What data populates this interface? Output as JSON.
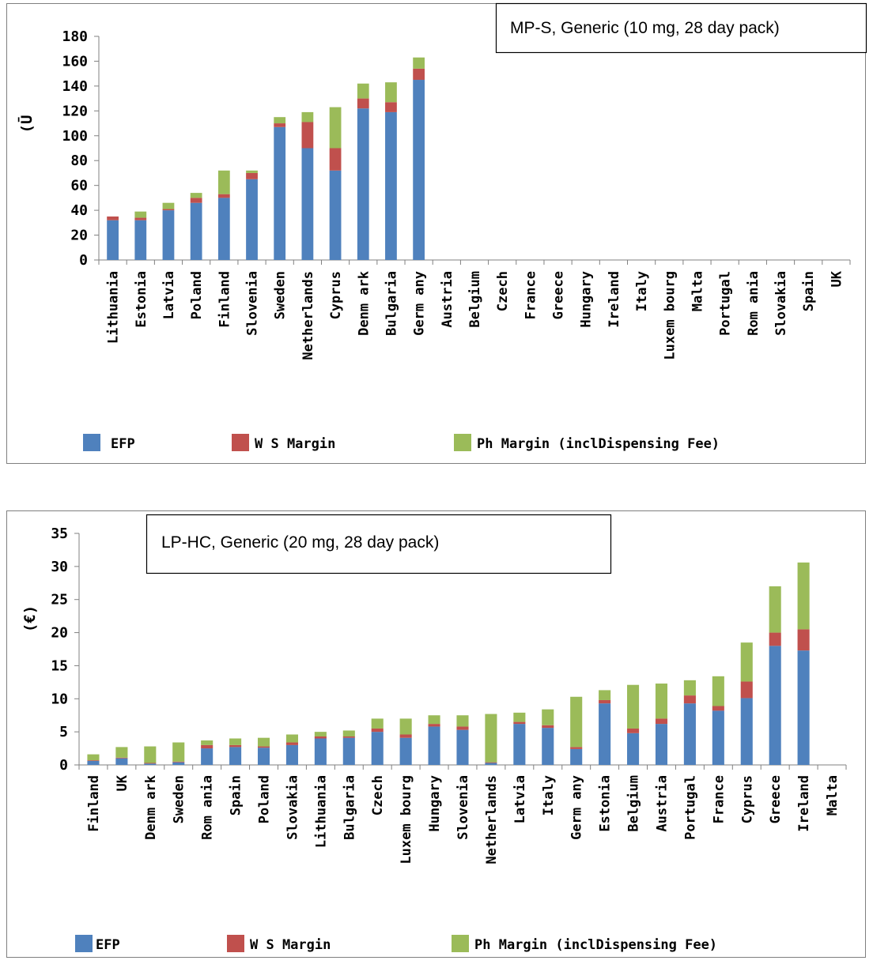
{
  "colors": {
    "EFP": "#4F81BD",
    "WS Margin": "#C0504D",
    "Ph Margin": "#9BBB59"
  },
  "legend_labels": [
    "EFP",
    "W S Margin",
    "Ph Margin (inclDispensing Fee)"
  ],
  "chart_data": [
    {
      "type": "bar",
      "stacked": true,
      "title": "MP-S, Generic (10 mg, 28 day pack)",
      "ylabel": "(Ū",
      "xlabel": "",
      "ylim": [
        0,
        180
      ],
      "yticks": [
        "0",
        "20",
        "40",
        "60",
        "80",
        "100",
        "120",
        "140",
        "160",
        "180"
      ],
      "grid": false,
      "legend": "bottom",
      "categories": [
        "Lithuania",
        "Estonia",
        "Latvia",
        "Poland",
        "Finland",
        "Slovenia",
        "Sweden",
        "Netherlands",
        "Cyprus",
        "Denmark",
        "Bulgaria",
        "Germany",
        "Austria",
        "Belgium",
        "Czech",
        "France",
        "Greece",
        "Hungary",
        "Ireland",
        "Italy",
        "Luxembourg",
        "Malta",
        "Portugal",
        "Romania",
        "Slovakia",
        "Spain",
        "UK"
      ],
      "category_labels": [
        "Lithuania",
        "Estonia",
        "Latvia",
        "Poland",
        "Finland",
        "Slovenia",
        "Sweden",
        "Netherlands",
        "Cyprus",
        "Denm ark",
        "Bulgaria",
        "Germ any",
        "Austria",
        "Belgium",
        "Czech",
        "France",
        "Greece",
        "Hungary",
        "Ireland",
        "Italy",
        "Luxem bourg",
        "Malta",
        "Portugal",
        "Rom ania",
        "Slovakia",
        "Spain",
        "UK"
      ],
      "series": [
        {
          "name": "EFP",
          "values": [
            32,
            32,
            40,
            46,
            50,
            65,
            107,
            90,
            72,
            122,
            119,
            145,
            0,
            0,
            0,
            0,
            0,
            0,
            0,
            0,
            0,
            0,
            0,
            0,
            0,
            0,
            0
          ]
        },
        {
          "name": "W S Margin",
          "values": [
            3,
            2,
            1,
            4,
            3,
            5,
            3,
            21,
            18,
            8,
            8,
            9,
            0,
            0,
            0,
            0,
            0,
            0,
            0,
            0,
            0,
            0,
            0,
            0,
            0,
            0,
            0
          ]
        },
        {
          "name": "Ph Margin (inclDispensing Fee)",
          "values": [
            0,
            5,
            5,
            4,
            19,
            2,
            5,
            8,
            33,
            12,
            16,
            9,
            0,
            0,
            0,
            0,
            0,
            0,
            0,
            0,
            0,
            0,
            0,
            0,
            0,
            0,
            0
          ]
        }
      ]
    },
    {
      "type": "bar",
      "stacked": true,
      "title": "LP-HC, Generic (20 mg, 28 day pack)",
      "ylabel": "(€)",
      "xlabel": "",
      "ylim": [
        0,
        35
      ],
      "yticks": [
        "0",
        "5",
        "10",
        "15",
        "20",
        "25",
        "30",
        "35"
      ],
      "grid": false,
      "legend": "bottom",
      "categories": [
        "Finland",
        "UK",
        "Denmark",
        "Sweden",
        "Romania",
        "Spain",
        "Poland",
        "Slovakia",
        "Lithuania",
        "Bulgaria",
        "Czech",
        "Luxembourg",
        "Hungary",
        "Slovenia",
        "Netherlands",
        "Latvia",
        "Italy",
        "Germany",
        "Estonia",
        "Belgium",
        "Austria",
        "Portugal",
        "France",
        "Cyprus",
        "Greece",
        "Ireland",
        "Malta"
      ],
      "category_labels": [
        "Finland",
        "UK",
        "Denm ark",
        "Sweden",
        "Rom ania",
        "Spain",
        "Poland",
        "Slovakia",
        "Lithuania",
        "Bulgaria",
        "Czech",
        "Luxem bourg",
        "Hungary",
        "Slovenia",
        "Netherlands",
        "Latvia",
        "Italy",
        "Germ any",
        "Estonia",
        "Belgium",
        "Austria",
        "Portugal",
        "France",
        "Cyprus",
        "Greece",
        "Ireland",
        "Malta"
      ],
      "series": [
        {
          "name": "EFP",
          "values": [
            0.6,
            1.0,
            0.2,
            0.4,
            2.5,
            2.7,
            2.6,
            3.0,
            4.0,
            4.1,
            5.0,
            4.1,
            5.8,
            5.3,
            0.3,
            6.2,
            5.6,
            2.4,
            9.3,
            4.8,
            6.2,
            9.3,
            8.2,
            10.1,
            18.0,
            17.3,
            0
          ]
        },
        {
          "name": "W S Margin",
          "values": [
            0.1,
            0.1,
            0.1,
            0.1,
            0.5,
            0.3,
            0.2,
            0.4,
            0.3,
            0.2,
            0.5,
            0.5,
            0.4,
            0.5,
            0.1,
            0.3,
            0.4,
            0.3,
            0.5,
            0.7,
            0.8,
            1.2,
            0.7,
            2.5,
            2.0,
            3.2,
            0
          ]
        },
        {
          "name": "Ph Margin (inclDispensing Fee)",
          "values": [
            0.9,
            1.6,
            2.5,
            2.9,
            0.7,
            1.0,
            1.3,
            1.2,
            0.7,
            0.9,
            1.5,
            2.4,
            1.3,
            1.7,
            7.3,
            1.4,
            2.4,
            7.6,
            1.5,
            6.6,
            5.3,
            2.3,
            4.5,
            5.9,
            7.0,
            10.1,
            0
          ]
        }
      ]
    }
  ]
}
